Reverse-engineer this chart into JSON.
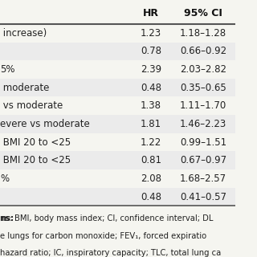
{
  "col_headers": [
    "HR",
    "95% CI"
  ],
  "rows": [
    [
      " increase)",
      "1.23",
      "1.18–1.28"
    ],
    [
      "",
      "0.78",
      "0.66–0.92"
    ],
    [
      "5%",
      "2.39",
      "2.03–2.82"
    ],
    [
      " moderate",
      "0.48",
      "0.35–0.65"
    ],
    [
      " vs moderate",
      "1.38",
      "1.11–1.70"
    ],
    [
      "evere vs moderate",
      "1.81",
      "1.46–2.23"
    ],
    [
      " BMI 20 to <25",
      "1.22",
      "0.99–1.51"
    ],
    [
      " BMI 20 to <25",
      "0.81",
      "0.67–0.97"
    ],
    [
      "%",
      "2.08",
      "1.68–2.57"
    ],
    [
      "",
      "0.48",
      "0.41–0.57"
    ]
  ],
  "footnote_lines": [
    "ns: BMI, body mass index; CI, confidence interval; DL",
    "e lungs for carbon monoxide; FEV₁, forced expiratio",
    "hazard ratio; IC, inspiratory capacity; TLC, total lung ca"
  ],
  "bg_color": "#f5f5f0",
  "header_color": "#ffffff",
  "row_colors": [
    "#ffffff",
    "#e8e8e0"
  ],
  "text_color": "#333333",
  "font_size": 8.5,
  "footnote_font_size": 7.2
}
